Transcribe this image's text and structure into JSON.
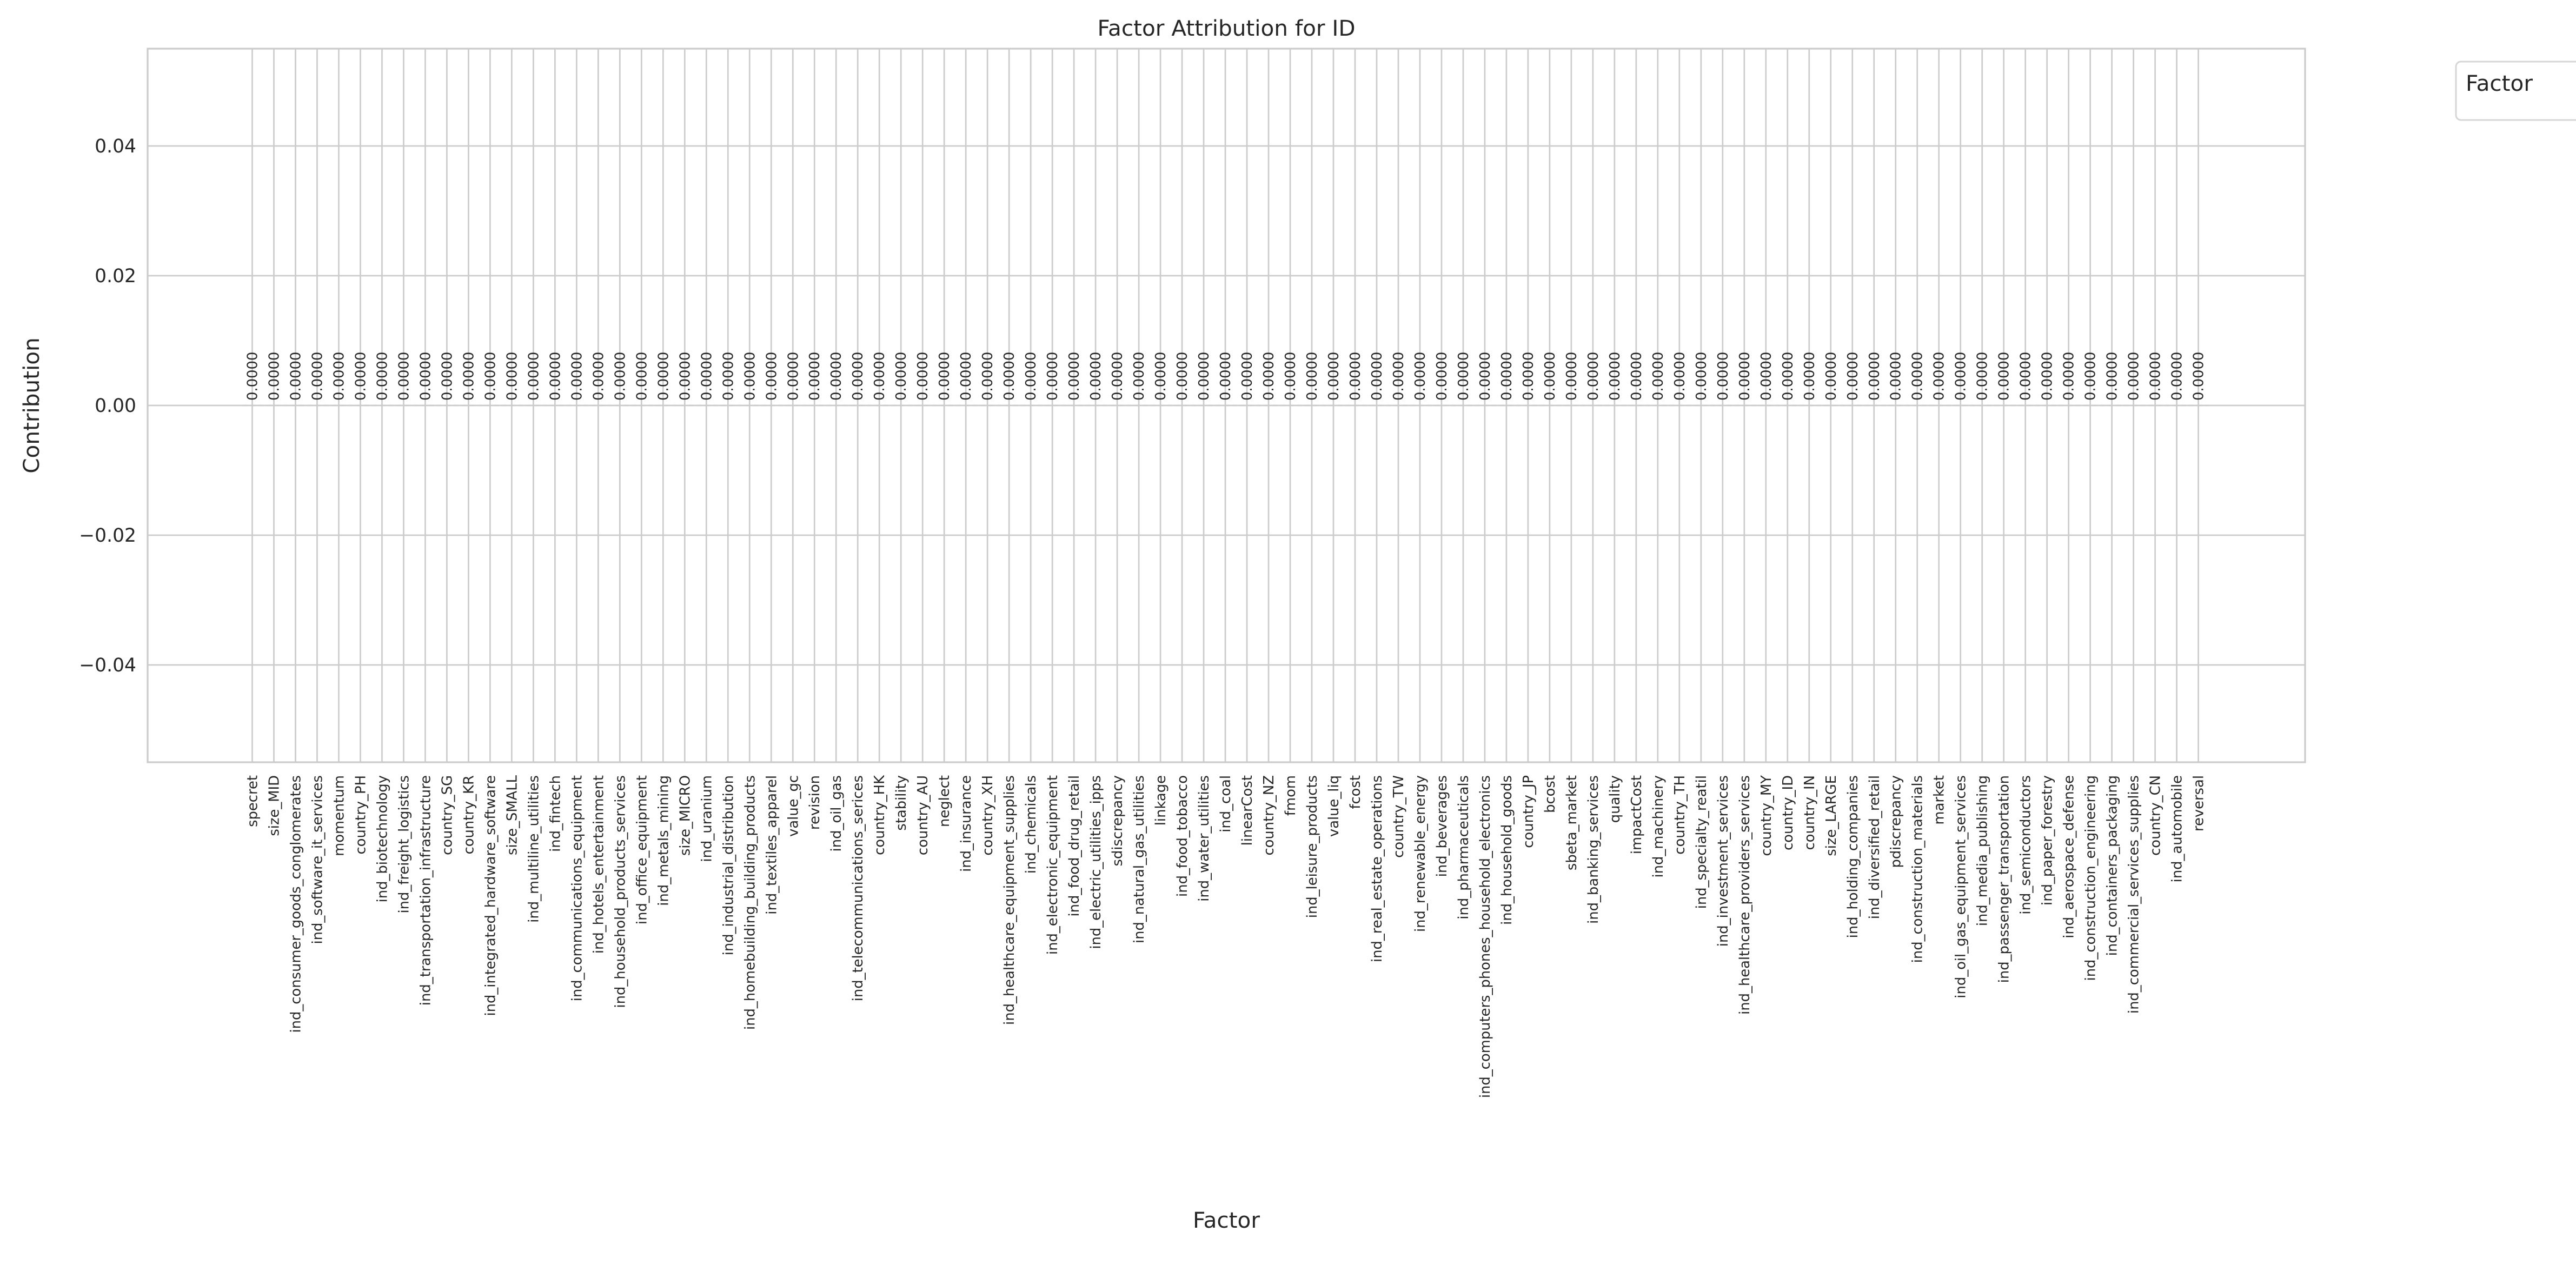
{
  "chart_data": {
    "type": "bar",
    "title": "Factor Attribution for ID",
    "xlabel": "Factor",
    "ylabel": "Contribution",
    "ylim": [
      -0.055,
      0.055
    ],
    "yticks": [
      -0.04,
      -0.02,
      0.0,
      0.02,
      0.04
    ],
    "ytick_labels": [
      "−0.04",
      "−0.02",
      "0.00",
      "0.02",
      "0.04"
    ],
    "grid": true,
    "legend": {
      "title": "Factor",
      "placement": "outside-top-right",
      "entries": []
    },
    "categories": [
      "specret",
      "size_MID",
      "ind_consumer_goods_conglomerates",
      "ind_software_it_services",
      "momentum",
      "country_PH",
      "ind_biotechnology",
      "ind_freight_logistics",
      "ind_transportation_infrastructure",
      "country_SG",
      "country_KR",
      "ind_integrated_hardware_software",
      "size_SMALL",
      "ind_multiline_utilities",
      "ind_fintech",
      "ind_communications_equipment",
      "ind_hotels_entertainment",
      "ind_household_products_services",
      "ind_office_equipment",
      "ind_metals_mining",
      "size_MICRO",
      "ind_uranium",
      "ind_industrial_distribution",
      "ind_homebuilding_building_products",
      "ind_textiles_apparel",
      "value_gc",
      "revision",
      "ind_oil_gas",
      "ind_telecommunications_serices",
      "country_HK",
      "stability",
      "country_AU",
      "neglect",
      "ind_insurance",
      "country_XH",
      "ind_healthcare_equipment_supplies",
      "ind_chemicals",
      "ind_electronic_equipment",
      "ind_food_drug_retail",
      "ind_electric_utilities_ipps",
      "sdiscrepancy",
      "ind_natural_gas_utilities",
      "linkage",
      "ind_food_tobacco",
      "ind_water_utilities",
      "ind_coal",
      "linearCost",
      "country_NZ",
      "fmom",
      "ind_leisure_products",
      "value_liq",
      "fcost",
      "ind_real_estate_operations",
      "country_TW",
      "ind_renewable_energy",
      "ind_beverages",
      "ind_pharmaceuticals",
      "ind_computers_phones_household_electronics",
      "ind_household_goods",
      "country_JP",
      "bcost",
      "sbeta_market",
      "ind_banking_services",
      "quality",
      "impactCost",
      "ind_machinery",
      "country_TH",
      "ind_specialty_reatil",
      "ind_investment_services",
      "ind_healthcare_providers_services",
      "country_MY",
      "country_ID",
      "country_IN",
      "size_LARGE",
      "ind_holding_companies",
      "ind_diversified_retail",
      "pdiscrepancy",
      "ind_construction_materials",
      "market",
      "ind_oil_gas_equipment_services",
      "ind_media_publishing",
      "ind_passenger_transportation",
      "ind_semiconductors",
      "ind_paper_forestry",
      "ind_aerospace_defense",
      "ind_construction_engineering",
      "ind_containers_packaging",
      "ind_commercial_services_supplies",
      "country_CN",
      "ind_automobile",
      "reversal"
    ],
    "values": [
      0,
      0,
      0,
      0,
      0,
      0,
      0,
      0,
      0,
      0,
      0,
      0,
      0,
      0,
      0,
      0,
      0,
      0,
      0,
      0,
      0,
      0,
      0,
      0,
      0,
      0,
      0,
      0,
      0,
      0,
      0,
      0,
      0,
      0,
      0,
      0,
      0,
      0,
      0,
      0,
      0,
      0,
      0,
      0,
      0,
      0,
      0,
      0,
      0,
      0,
      0,
      0,
      0,
      0,
      0,
      0,
      0,
      0,
      0,
      0,
      0,
      0,
      0,
      0,
      0,
      0,
      0,
      0,
      0,
      0,
      0,
      0,
      0,
      0,
      0,
      0,
      0,
      0,
      0,
      0,
      0,
      0,
      0,
      0,
      0,
      0,
      0,
      0,
      0,
      0,
      0
    ],
    "value_labels": "0.0000",
    "colors": {
      "grid": "#cccccc",
      "text": "#262626",
      "background": "#ffffff"
    }
  }
}
